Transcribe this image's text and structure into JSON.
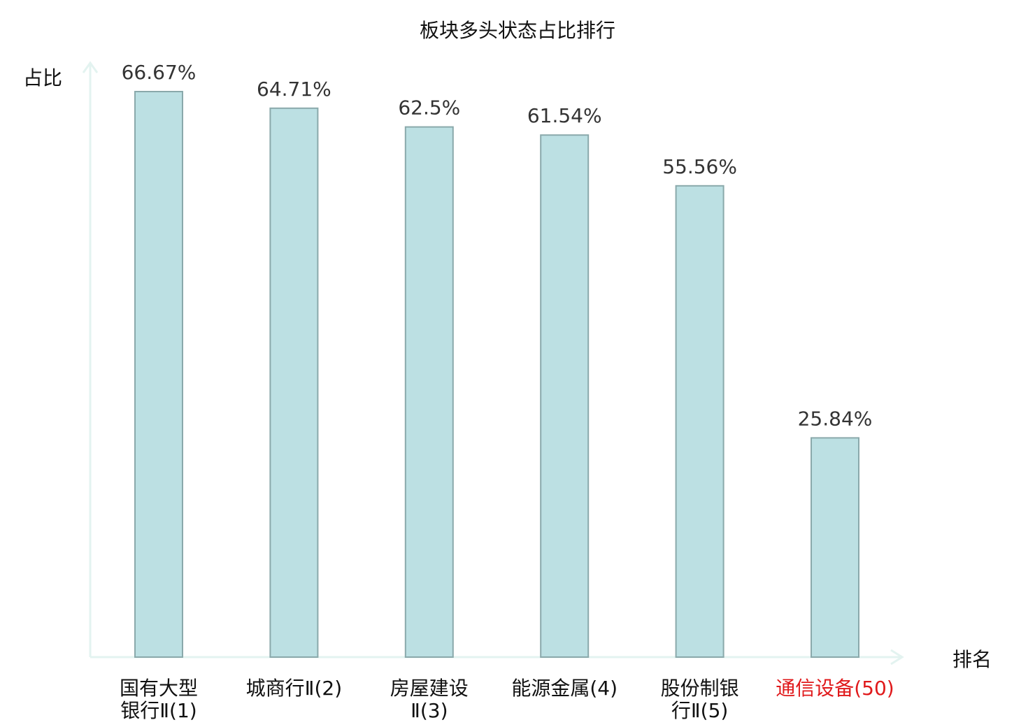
{
  "chart_data": {
    "type": "bar",
    "title": "板块多头状态占比排行",
    "ylabel": "占比",
    "xlabel": "排名",
    "ylim": [
      0,
      70
    ],
    "grid": false,
    "categories": [
      [
        "国有大型",
        "银行Ⅱ(1)"
      ],
      [
        "城商行Ⅱ(2)"
      ],
      [
        "房屋建设",
        "Ⅱ(3)"
      ],
      [
        "能源金属(4)"
      ],
      [
        "股份制银",
        "行Ⅱ(5)"
      ],
      [
        "通信设备(50)"
      ]
    ],
    "values": [
      66.67,
      64.71,
      62.5,
      61.54,
      55.56,
      25.84
    ],
    "value_labels": [
      "66.67%",
      "64.71%",
      "62.5%",
      "61.54%",
      "55.56%",
      "25.84%"
    ],
    "highlight_index": 5,
    "colors": {
      "bar_fill": "#bce0e3",
      "bar_stroke": "#8aa9ab",
      "axis": "#e3f3f0",
      "highlight_text": "#e0191b",
      "text": "#111111",
      "value_text": "#333333"
    }
  }
}
